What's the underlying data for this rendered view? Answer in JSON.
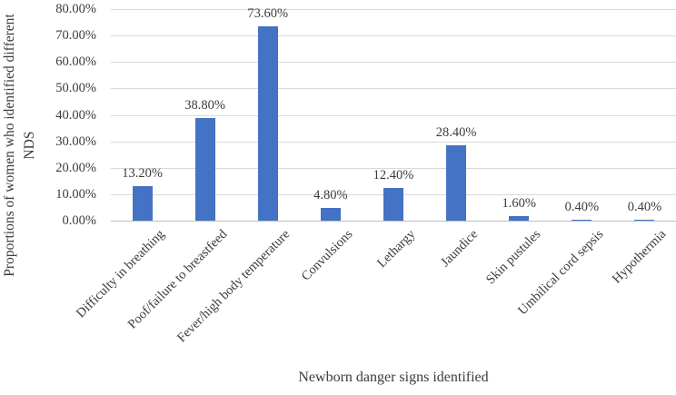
{
  "chart_data": {
    "type": "bar",
    "categories": [
      "Difficulty in breathing",
      "Poof/failure to breastfeed",
      "Fever/high body temperature",
      "Convulsions",
      "Lethargy",
      "Jaundice",
      "Skin pustules",
      "Umbilical cord sepsis",
      "Hypothermia"
    ],
    "values": [
      13.2,
      38.8,
      73.6,
      4.8,
      12.4,
      28.4,
      1.6,
      0.4,
      0.4
    ],
    "data_labels": [
      "13.20%",
      "38.80%",
      "73.60%",
      "4.80%",
      "12.40%",
      "28.40%",
      "1.60%",
      "0.40%",
      "0.40%"
    ],
    "xlabel": "Newborn danger signs identified",
    "ylabel": "Proportions of women who identified different NDS",
    "ylabel_lines": [
      "Proportions of women who identified different",
      "NDS"
    ],
    "y_ticks": [
      "80.00%",
      "70.00%",
      "60.00%",
      "50.00%",
      "40.00%",
      "30.00%",
      "20.00%",
      "10.00%",
      "0.00%"
    ],
    "ylim": [
      0,
      80
    ],
    "grid": true,
    "legend": "none",
    "bar_color": "#4472c4",
    "gridline_color": "#d9d9d9",
    "axis_line_color": "#bfbfbf",
    "text_color": "#3b3b3b"
  }
}
